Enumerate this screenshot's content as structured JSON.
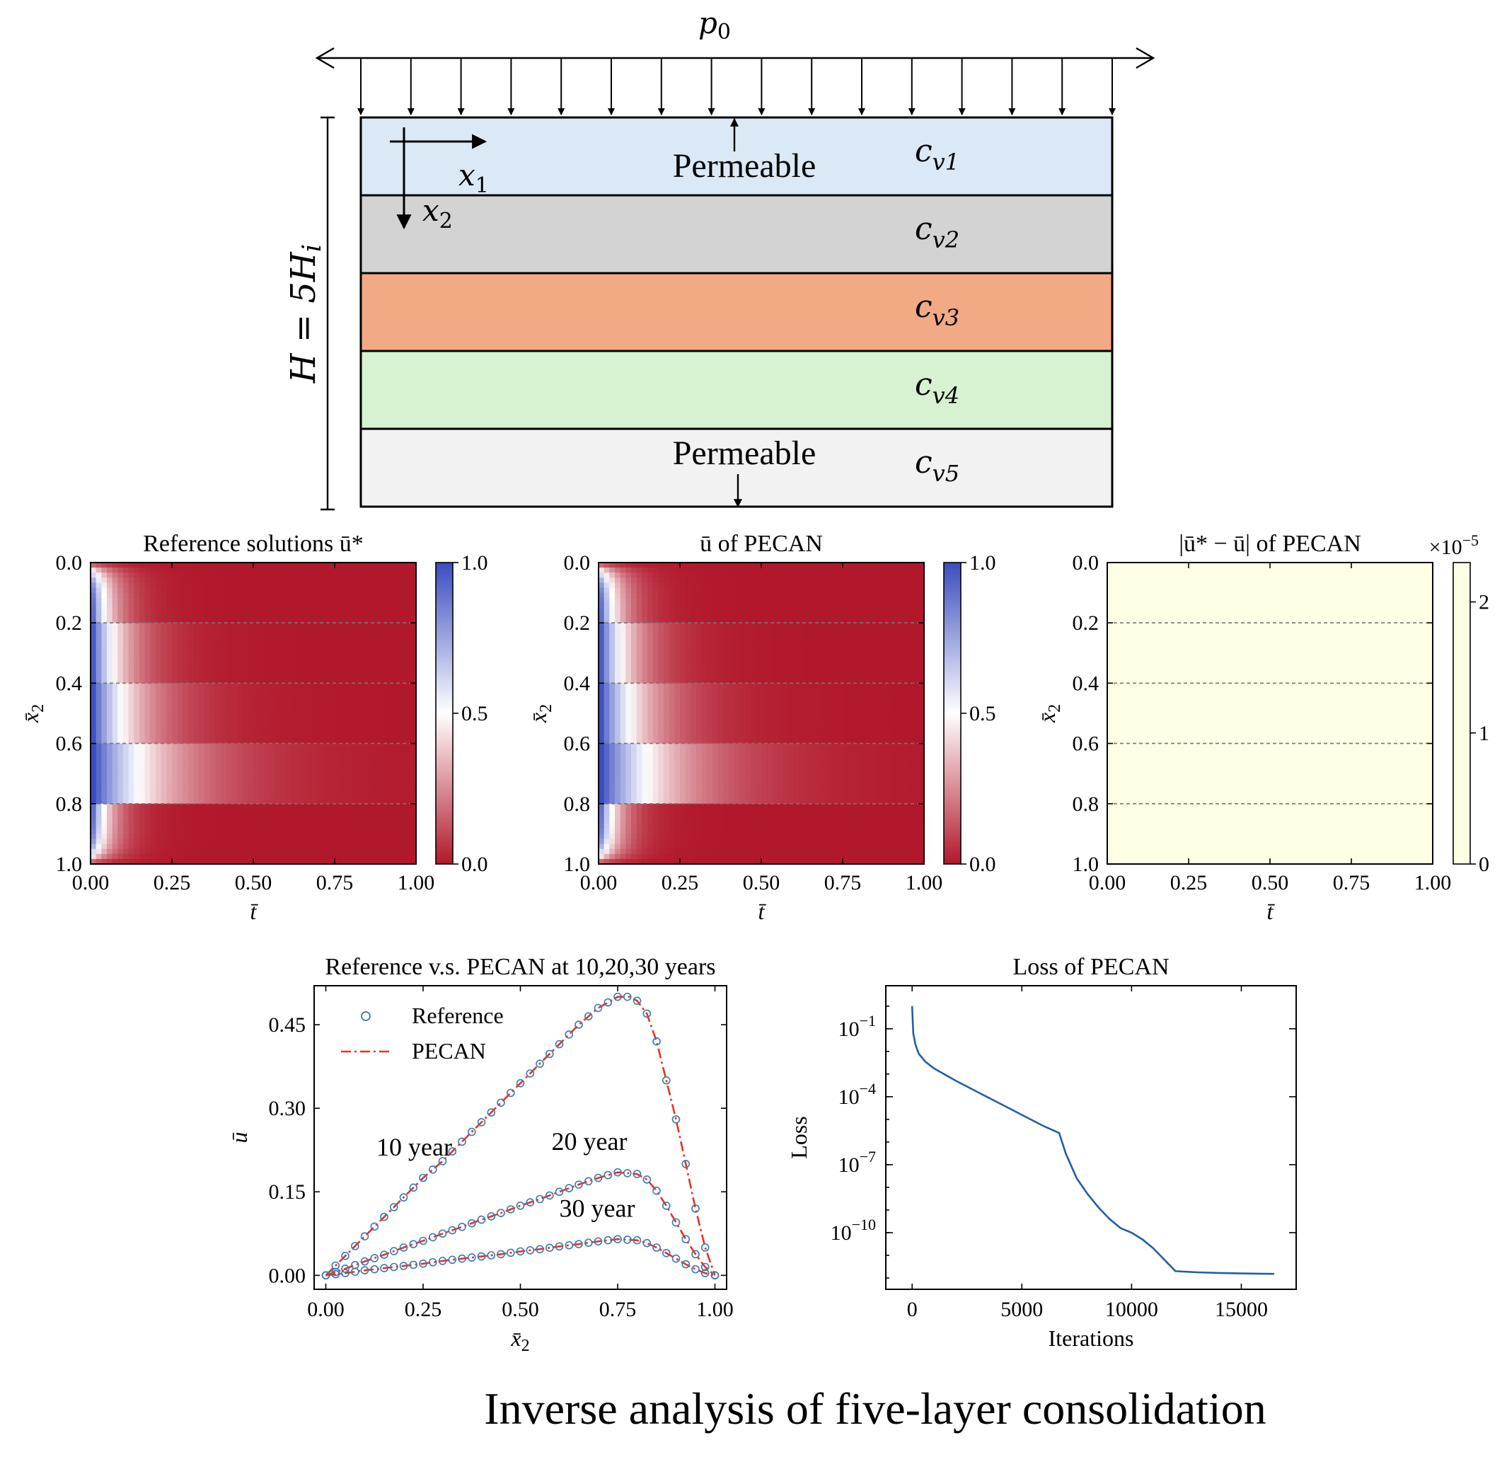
{
  "schematic": {
    "load_label": "p",
    "load_subscript": "0",
    "height_label": "H = 5H",
    "height_subscript": "i",
    "axis_x1": "x",
    "axis_x1_sub": "1",
    "axis_x2": "x",
    "axis_x2_sub": "2",
    "top_boundary": "Permeable",
    "bottom_boundary": "Permeable",
    "layers": [
      {
        "label": "c",
        "sub": "v1",
        "color": "#dbe8f6"
      },
      {
        "label": "c",
        "sub": "v2",
        "color": "#d3d3d3"
      },
      {
        "label": "c",
        "sub": "v3",
        "color": "#f2aa85"
      },
      {
        "label": "c",
        "sub": "v4",
        "color": "#d6f2d0"
      },
      {
        "label": "c",
        "sub": "v5",
        "color": "#f2f2f2"
      }
    ]
  },
  "caption": "Inverse analysis of five-layer consolidation",
  "chart_data": [
    {
      "type": "heatmap",
      "title": "Reference solutions ū*",
      "xlabel": "t̄",
      "ylabel": "x̄2",
      "xlim": [
        0,
        1
      ],
      "ylim": [
        0,
        1
      ],
      "xticks": [
        "0.00",
        "0.25",
        "0.50",
        "0.75",
        "1.00"
      ],
      "yticks": [
        "0.0",
        "0.2",
        "0.4",
        "0.6",
        "0.8",
        "1.0"
      ],
      "colorbar_ticks": [
        "0.0",
        "0.5",
        "1.0"
      ],
      "colorbar_range": [
        0,
        1
      ],
      "colormap": [
        "#b2182b",
        "#ffffff",
        "#3b4cc0"
      ],
      "layer_boundaries": [
        0.2,
        0.4,
        0.6,
        0.8
      ]
    },
    {
      "type": "heatmap",
      "title": "ū of PECAN",
      "xlabel": "t̄",
      "ylabel": "x̄2",
      "xlim": [
        0,
        1
      ],
      "ylim": [
        0,
        1
      ],
      "xticks": [
        "0.00",
        "0.25",
        "0.50",
        "0.75",
        "1.00"
      ],
      "yticks": [
        "0.0",
        "0.2",
        "0.4",
        "0.6",
        "0.8",
        "1.0"
      ],
      "colorbar_ticks": [
        "0.0",
        "0.5",
        "1.0"
      ],
      "colorbar_range": [
        0,
        1
      ],
      "colormap": [
        "#b2182b",
        "#ffffff",
        "#3b4cc0"
      ],
      "layer_boundaries": [
        0.2,
        0.4,
        0.6,
        0.8
      ]
    },
    {
      "type": "heatmap",
      "title": "|ū* − ū| of PECAN",
      "xlabel": "t̄",
      "ylabel": "x̄2",
      "xlim": [
        0,
        1
      ],
      "ylim": [
        0,
        1
      ],
      "xticks": [
        "0.00",
        "0.25",
        "0.50",
        "0.75",
        "1.00"
      ],
      "yticks": [
        "0.0",
        "0.2",
        "0.4",
        "0.6",
        "0.8",
        "1.0"
      ],
      "colorbar_ticks": [
        "0",
        "1",
        "2"
      ],
      "colorbar_range": [
        0,
        2.3
      ],
      "colorbar_multiplier": "×10",
      "colorbar_exponent": "−5",
      "fill_color": "#ffffe5",
      "layer_boundaries": [
        0.2,
        0.4,
        0.6,
        0.8
      ]
    },
    {
      "type": "line",
      "title": "Reference v.s. PECAN at 10,20,30 years",
      "xlabel": "x̄2",
      "ylabel": "ū",
      "xlim": [
        -0.03,
        1.03
      ],
      "ylim": [
        -0.025,
        0.52
      ],
      "xticks": [
        0,
        0.25,
        0.5,
        0.75,
        1.0
      ],
      "xtick_labels": [
        "0.00",
        "0.25",
        "0.50",
        "0.75",
        "1.00"
      ],
      "yticks": [
        0,
        0.15,
        0.3,
        0.45
      ],
      "ytick_labels": [
        "0.00",
        "0.15",
        "0.30",
        "0.45"
      ],
      "legend": [
        "Reference",
        "PECAN"
      ],
      "legend_position": "top-left",
      "annotations": [
        "10 year",
        "20 year",
        "30 year"
      ],
      "series": [
        {
          "year": "10 year",
          "x": [
            0,
            0.05,
            0.1,
            0.15,
            0.2,
            0.25,
            0.3,
            0.35,
            0.4,
            0.45,
            0.5,
            0.55,
            0.6,
            0.65,
            0.7,
            0.75,
            0.78,
            0.8,
            0.825,
            0.85,
            0.875,
            0.9,
            0.925,
            0.95,
            0.975,
            1.0
          ],
          "y": [
            0,
            0.035,
            0.07,
            0.105,
            0.14,
            0.175,
            0.205,
            0.24,
            0.275,
            0.31,
            0.345,
            0.38,
            0.415,
            0.45,
            0.48,
            0.5,
            0.5,
            0.493,
            0.47,
            0.42,
            0.35,
            0.28,
            0.2,
            0.12,
            0.05,
            0
          ]
        },
        {
          "year": "20 year",
          "x": [
            0,
            0.05,
            0.1,
            0.15,
            0.2,
            0.25,
            0.3,
            0.35,
            0.4,
            0.45,
            0.5,
            0.55,
            0.6,
            0.65,
            0.7,
            0.75,
            0.8,
            0.825,
            0.85,
            0.875,
            0.9,
            0.925,
            0.95,
            0.975,
            1.0
          ],
          "y": [
            0,
            0.012,
            0.025,
            0.037,
            0.05,
            0.062,
            0.075,
            0.087,
            0.1,
            0.112,
            0.125,
            0.137,
            0.15,
            0.163,
            0.175,
            0.185,
            0.182,
            0.172,
            0.152,
            0.125,
            0.095,
            0.065,
            0.038,
            0.015,
            0
          ]
        },
        {
          "year": "30 year",
          "x": [
            0,
            0.05,
            0.1,
            0.15,
            0.2,
            0.25,
            0.3,
            0.35,
            0.4,
            0.45,
            0.5,
            0.55,
            0.6,
            0.65,
            0.7,
            0.75,
            0.8,
            0.825,
            0.85,
            0.875,
            0.9,
            0.925,
            0.95,
            0.975,
            1.0
          ],
          "y": [
            0,
            0.004,
            0.009,
            0.013,
            0.017,
            0.021,
            0.026,
            0.03,
            0.034,
            0.038,
            0.043,
            0.047,
            0.052,
            0.056,
            0.061,
            0.065,
            0.063,
            0.058,
            0.05,
            0.04,
            0.03,
            0.02,
            0.011,
            0.004,
            0
          ]
        }
      ],
      "colors": {
        "reference": "#3c78b4",
        "pecan": "#e8341c"
      }
    },
    {
      "type": "line",
      "title": "Loss of PECAN",
      "xlabel": "Iterations",
      "ylabel": "Loss",
      "yscale": "log",
      "xlim": [
        -1200,
        17500
      ],
      "ylim_log10": [
        -12.5,
        0.9
      ],
      "xticks": [
        0,
        5000,
        10000,
        15000
      ],
      "xtick_labels": [
        "0",
        "5000",
        "10000",
        "15000"
      ],
      "yticks_log10": [
        -1,
        -4,
        -7,
        -10
      ],
      "series": [
        {
          "name": "",
          "x": [
            0,
            50,
            150,
            300,
            600,
            1000,
            2000,
            3000,
            4000,
            5000,
            6000,
            6700,
            7000,
            7500,
            8000,
            8500,
            9000,
            9500,
            10000,
            10500,
            11000,
            11500,
            11800,
            12000,
            13000,
            14000,
            15000,
            16500
          ],
          "log10_y": [
            0.0,
            -1.2,
            -1.7,
            -2.1,
            -2.45,
            -2.75,
            -3.3,
            -3.8,
            -4.3,
            -4.8,
            -5.3,
            -5.6,
            -6.5,
            -7.6,
            -8.3,
            -8.9,
            -9.4,
            -9.8,
            -10.0,
            -10.3,
            -10.7,
            -11.2,
            -11.5,
            -11.7,
            -11.75,
            -11.78,
            -11.8,
            -11.82
          ]
        }
      ],
      "color": "#1f5fa8"
    }
  ]
}
